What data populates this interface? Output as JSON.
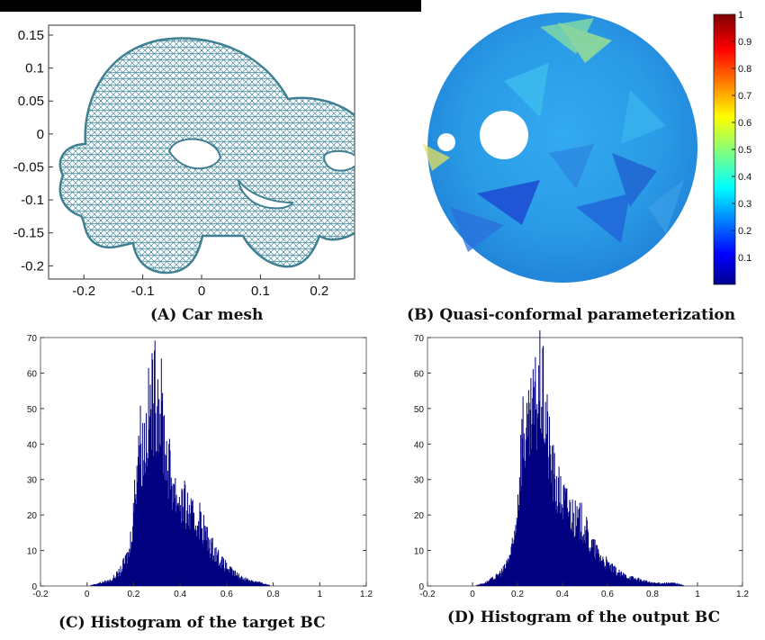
{
  "panels": {
    "a": {
      "caption": "(A) Car mesh"
    },
    "b": {
      "caption": "(B) Quasi-conformal parameterization"
    },
    "c": {
      "caption": "(C) Histogram of the target BC"
    },
    "d": {
      "caption": "(D) Histogram of the output BC"
    }
  },
  "colors": {
    "mesh_edge": "#4a8fa3",
    "hist_bar": "#000080",
    "colormap": "jet"
  },
  "chart_data": [
    {
      "type": "mesh-plot",
      "panel": "a",
      "xlim": [
        -0.26,
        0.26
      ],
      "ylim": [
        -0.22,
        0.165
      ],
      "x_ticks": [
        "-0.2",
        "-0.1",
        "0",
        "0.1",
        "0.2"
      ],
      "y_ticks": [
        "0.15",
        "0.1",
        "0.05",
        "0",
        "-0.05",
        "-0.1",
        "-0.15",
        "-0.2"
      ]
    },
    {
      "type": "heatmap",
      "panel": "b",
      "colorbar_range": [
        0,
        1
      ],
      "colorbar_ticks": [
        "1",
        "0.9",
        "0.8",
        "0.7",
        "0.6",
        "0.5",
        "0.4",
        "0.3",
        "0.2",
        "0.1"
      ]
    },
    {
      "type": "bar",
      "panel": "c",
      "xlim": [
        -0.2,
        1.2
      ],
      "ylim": [
        0,
        70
      ],
      "x_ticks": [
        "-0.2",
        "0",
        "0.2",
        "0.4",
        "0.6",
        "0.8",
        "1",
        "1.2"
      ],
      "y_ticks": [
        "70",
        "60",
        "50",
        "40",
        "30",
        "20",
        "10",
        "0"
      ],
      "bins_x": [
        0.0,
        0.05,
        0.1,
        0.14,
        0.18,
        0.2,
        0.22,
        0.24,
        0.26,
        0.28,
        0.3,
        0.32,
        0.34,
        0.36,
        0.38,
        0.4,
        0.42,
        0.44,
        0.46,
        0.48,
        0.5,
        0.52,
        0.55,
        0.58,
        0.62,
        0.66,
        0.7,
        0.75,
        0.8
      ],
      "counts": [
        0,
        1,
        2,
        5,
        12,
        28,
        52,
        48,
        58,
        65,
        69,
        60,
        45,
        38,
        32,
        30,
        28,
        25,
        22,
        24,
        20,
        15,
        12,
        8,
        5,
        3,
        2,
        1,
        0
      ]
    },
    {
      "type": "bar",
      "panel": "d",
      "xlim": [
        -0.2,
        1.2
      ],
      "ylim": [
        0,
        70
      ],
      "x_ticks": [
        "-0.2",
        "0",
        "0.2",
        "0.4",
        "0.6",
        "0.8",
        "1",
        "1.2"
      ],
      "y_ticks": [
        "70",
        "60",
        "50",
        "40",
        "30",
        "20",
        "10",
        "0"
      ],
      "bins_x": [
        0.0,
        0.05,
        0.1,
        0.14,
        0.18,
        0.2,
        0.22,
        0.24,
        0.26,
        0.28,
        0.3,
        0.32,
        0.34,
        0.36,
        0.38,
        0.4,
        0.42,
        0.44,
        0.46,
        0.48,
        0.5,
        0.52,
        0.55,
        0.58,
        0.62,
        0.66,
        0.7,
        0.75,
        0.8,
        0.85,
        0.9,
        0.95
      ],
      "counts": [
        0,
        1,
        3,
        6,
        14,
        30,
        56,
        50,
        57,
        64,
        70,
        62,
        47,
        38,
        33,
        30,
        28,
        26,
        22,
        23,
        20,
        15,
        12,
        9,
        6,
        4,
        3,
        2,
        1,
        1,
        1,
        0
      ]
    }
  ]
}
